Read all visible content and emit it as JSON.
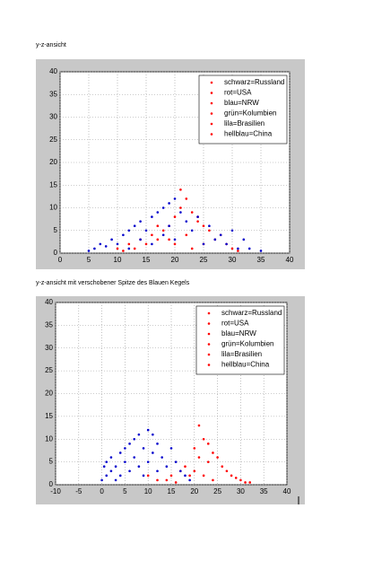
{
  "chart_data": [
    {
      "type": "scatter",
      "title": "y-z-ansicht",
      "xlim": [
        0,
        40
      ],
      "ylim": [
        0,
        40
      ],
      "xticks": [
        0,
        5,
        10,
        15,
        20,
        25,
        30,
        35,
        40
      ],
      "yticks": [
        0,
        5,
        10,
        15,
        20,
        25,
        30,
        35,
        40
      ],
      "grid": true,
      "legend": "upper right",
      "legend_marker_color": "#ff0000",
      "series": [
        {
          "name": "schwarz=Russland",
          "color": "#000000",
          "x": [],
          "values": []
        },
        {
          "name": "rot=USA",
          "color": "#ff0000",
          "x": [
            10,
            11,
            12,
            13,
            14,
            15,
            16,
            17,
            18,
            19,
            20,
            20,
            21,
            21,
            22,
            22,
            23,
            23,
            24,
            25,
            25,
            26,
            27,
            28,
            29,
            30,
            31,
            17,
            19,
            24
          ],
          "values": [
            1,
            0.5,
            2,
            1,
            3,
            2,
            4,
            3,
            5,
            6,
            8,
            2,
            10,
            14,
            12,
            4,
            9,
            1,
            7,
            6,
            2,
            5,
            3,
            4,
            2,
            1,
            0.5,
            6,
            3,
            8
          ]
        },
        {
          "name": "blau=NRW",
          "color": "#0000cc",
          "x": [
            5,
            6,
            7,
            8,
            9,
            10,
            11,
            12,
            12,
            13,
            14,
            14,
            15,
            16,
            16,
            17,
            18,
            18,
            19,
            19,
            20,
            20,
            21,
            22,
            23,
            24,
            25,
            26,
            27,
            28,
            29,
            30,
            31,
            32,
            33,
            35
          ],
          "values": [
            0.5,
            1,
            2,
            1.5,
            3,
            2,
            4,
            5,
            1,
            6,
            3,
            7,
            5,
            8,
            2,
            9,
            10,
            4,
            11,
            6,
            12,
            3,
            9,
            7,
            5,
            8,
            2,
            6,
            3,
            4,
            2,
            5,
            1,
            3,
            1,
            0.5
          ]
        },
        {
          "name": "grün=Kolumbien",
          "color": "#00aa00",
          "x": [],
          "values": []
        },
        {
          "name": "lila=Brasilien",
          "color": "#aa00aa",
          "x": [],
          "values": []
        },
        {
          "name": "hellblau=China",
          "color": "#00aaff",
          "x": [],
          "values": []
        }
      ]
    },
    {
      "type": "scatter",
      "title": "y-z-ansicht mit verschobener Spitze des Blauen Kegels",
      "xlim": [
        -10,
        40
      ],
      "ylim": [
        0,
        40
      ],
      "xticks": [
        -10,
        -5,
        0,
        5,
        10,
        15,
        20,
        25,
        30,
        35,
        40
      ],
      "yticks": [
        0,
        5,
        10,
        15,
        20,
        25,
        30,
        35,
        40
      ],
      "grid": true,
      "legend": "upper right",
      "legend_marker_color": "#ff0000",
      "series": [
        {
          "name": "schwarz=Russland",
          "color": "#000000",
          "x": [],
          "values": []
        },
        {
          "name": "rot=USA",
          "color": "#ff0000",
          "x": [
            14,
            15,
            16,
            17,
            18,
            19,
            20,
            20,
            21,
            21,
            22,
            22,
            23,
            23,
            24,
            24,
            25,
            26,
            27,
            28,
            29,
            30,
            31,
            32,
            10,
            12
          ],
          "values": [
            1,
            2,
            0.5,
            3,
            4,
            2,
            8,
            3,
            13,
            6,
            10,
            2,
            9,
            5,
            7,
            1,
            6,
            4,
            3,
            2,
            1.5,
            1,
            0.5,
            0.5,
            2,
            1
          ]
        },
        {
          "name": "blau=NRW",
          "color": "#0000cc",
          "x": [
            0,
            0.5,
            1,
            1,
            2,
            2,
            3,
            3,
            4,
            4,
            5,
            5,
            6,
            6,
            7,
            7,
            8,
            8,
            9,
            9,
            10,
            10,
            11,
            11,
            12,
            12,
            13,
            14,
            15,
            16,
            17,
            18,
            19
          ],
          "values": [
            1,
            4,
            2,
            5,
            3,
            6,
            1,
            4,
            7,
            2,
            5,
            8,
            3,
            9,
            6,
            10,
            4,
            11,
            2,
            8,
            12,
            5,
            7,
            11,
            3,
            9,
            6,
            4,
            8,
            5,
            3,
            2,
            1
          ]
        },
        {
          "name": "grün=Kolumbien",
          "color": "#00aa00",
          "x": [],
          "values": []
        },
        {
          "name": "lila=Brasilien",
          "color": "#aa00aa",
          "x": [],
          "values": []
        },
        {
          "name": "hellblau=China",
          "color": "#00aaff",
          "x": [],
          "values": []
        }
      ]
    }
  ]
}
